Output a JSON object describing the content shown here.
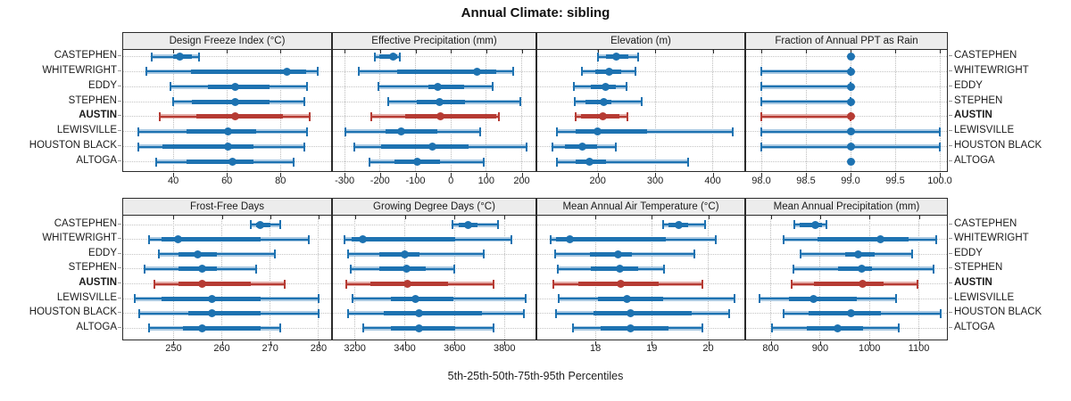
{
  "title": "Annual Climate: sibling",
  "footer": "5th-25th-50th-75th-95th Percentiles",
  "locations": [
    "CASTEPHEN",
    "WHITEWRIGHT",
    "EDDY",
    "STEPHEN",
    "AUSTIN",
    "LEWISVILLE",
    "HOUSTON BLACK",
    "ALTOGA"
  ],
  "highlight": "AUSTIN",
  "colors": {
    "blue": "#1d72b1",
    "blue_light": "#aac9e2",
    "red": "#b63b33",
    "red_light": "#e3aca7",
    "strip_bg": "#ececec",
    "border": "#2b2b2b",
    "grid": "#c0c0c0"
  },
  "chart_data": [
    {
      "type": "dotplot-percentiles",
      "grid": 0,
      "title": "Design Freeze Index (°C)",
      "xlim": [
        21.3,
        98.9
      ],
      "ticks": [
        40,
        60,
        80
      ],
      "tick_labels": [
        "40",
        "60",
        "80"
      ],
      "series": [
        {
          "name": "CASTEPHEN",
          "percentiles": [
            32,
            40,
            42.5,
            47,
            49.5
          ]
        },
        {
          "name": "WHITEWRIGHT",
          "percentiles": [
            30,
            46.5,
            82.5,
            89.5,
            94
          ]
        },
        {
          "name": "EDDY",
          "percentiles": [
            39,
            53,
            63,
            76,
            90
          ]
        },
        {
          "name": "STEPHEN",
          "percentiles": [
            40,
            47,
            63,
            76,
            89
          ]
        },
        {
          "name": "AUSTIN",
          "percentiles": [
            35,
            48.5,
            63,
            81,
            91
          ]
        },
        {
          "name": "LEWISVILLE",
          "percentiles": [
            27,
            45,
            60.5,
            71,
            90
          ]
        },
        {
          "name": "HOUSTON BLACK",
          "percentiles": [
            27,
            36,
            60.5,
            70,
            89
          ]
        },
        {
          "name": "ALTOGA",
          "percentiles": [
            33.5,
            45,
            62,
            70,
            85
          ]
        }
      ]
    },
    {
      "type": "dotplot-percentiles",
      "grid": 0,
      "title": "Effective Precipitation (mm)",
      "xlim": [
        -333,
        239
      ],
      "ticks": [
        -300,
        -200,
        -100,
        0,
        100,
        200
      ],
      "tick_labels": [
        "-300",
        "-200",
        "-100",
        "0",
        "100",
        "200"
      ],
      "series": [
        {
          "name": "CASTEPHEN",
          "percentiles": [
            -215,
            -203,
            -163,
            -151,
            -145
          ]
        },
        {
          "name": "WHITEWRIGHT",
          "percentiles": [
            -259,
            -151,
            74,
            128,
            176
          ]
        },
        {
          "name": "EDDY",
          "percentiles": [
            -205,
            -63,
            -36,
            37,
            118
          ]
        },
        {
          "name": "STEPHEN",
          "percentiles": [
            -176,
            -96,
            -32,
            41,
            195
          ]
        },
        {
          "name": "AUSTIN",
          "percentiles": [
            -226,
            -130,
            -30,
            128,
            135
          ]
        },
        {
          "name": "LEWISVILLE",
          "percentiles": [
            -298,
            -184,
            -141,
            -38,
            82
          ]
        },
        {
          "name": "HOUSTON BLACK",
          "percentiles": [
            -273,
            -196,
            -51,
            49,
            214
          ]
        },
        {
          "name": "ALTOGA",
          "percentiles": [
            -230,
            -159,
            -96,
            -30,
            93
          ]
        }
      ]
    },
    {
      "type": "dotplot-percentiles",
      "grid": 0,
      "title": "Elevation (m)",
      "xlim": [
        95,
        455
      ],
      "ticks": [
        200,
        300,
        400
      ],
      "tick_labels": [
        "200",
        "300",
        "400"
      ],
      "series": [
        {
          "name": "CASTEPHEN",
          "percentiles": [
            200,
            215,
            233,
            253,
            271
          ]
        },
        {
          "name": "WHITEWRIGHT",
          "percentiles": [
            172,
            196,
            220,
            241,
            265
          ]
        },
        {
          "name": "EDDY",
          "percentiles": [
            158,
            188,
            213,
            231,
            250
          ]
        },
        {
          "name": "STEPHEN",
          "percentiles": [
            160,
            179,
            210,
            224,
            276
          ]
        },
        {
          "name": "AUSTIN",
          "percentiles": [
            162,
            171,
            209,
            238,
            252
          ]
        },
        {
          "name": "LEWISVILLE",
          "percentiles": [
            129,
            162,
            200,
            286,
            435
          ]
        },
        {
          "name": "HOUSTON BLACK",
          "percentiles": [
            121,
            143,
            173,
            199,
            232
          ]
        },
        {
          "name": "ALTOGA",
          "percentiles": [
            129,
            162,
            185,
            214,
            357
          ]
        }
      ]
    },
    {
      "type": "dotplot-percentiles",
      "grid": 0,
      "title": "Fraction of Annual PPT as Rain",
      "xlim": [
        97.83,
        100.08
      ],
      "ticks": [
        98.0,
        98.5,
        99.0,
        99.5,
        100.0
      ],
      "tick_labels": [
        "98.0",
        "98.5",
        "99.0",
        "99.5",
        "100.0"
      ],
      "series": [
        {
          "name": "CASTEPHEN",
          "percentiles": [
            99,
            99,
            99,
            99,
            99
          ]
        },
        {
          "name": "WHITEWRIGHT",
          "percentiles": [
            98,
            99,
            99,
            99,
            99
          ]
        },
        {
          "name": "EDDY",
          "percentiles": [
            98,
            99,
            99,
            99,
            99
          ]
        },
        {
          "name": "STEPHEN",
          "percentiles": [
            98,
            99,
            99,
            99,
            99
          ]
        },
        {
          "name": "AUSTIN",
          "percentiles": [
            98,
            99,
            99,
            99,
            99
          ]
        },
        {
          "name": "LEWISVILLE",
          "percentiles": [
            98,
            99,
            99,
            99,
            100
          ]
        },
        {
          "name": "HOUSTON BLACK",
          "percentiles": [
            98,
            99,
            99,
            99,
            100
          ]
        },
        {
          "name": "ALTOGA",
          "percentiles": [
            99,
            99,
            99,
            99,
            99
          ]
        }
      ]
    },
    {
      "type": "dotplot-percentiles",
      "grid": 1,
      "title": "Frost-Free Days",
      "xlim": [
        239.6,
        282.6
      ],
      "ticks": [
        250,
        260,
        270,
        280
      ],
      "tick_labels": [
        "250",
        "260",
        "270",
        "280"
      ],
      "series": [
        {
          "name": "CASTEPHEN",
          "percentiles": [
            266,
            267,
            268,
            270,
            272
          ]
        },
        {
          "name": "WHITEWRIGHT",
          "percentiles": [
            245,
            247.5,
            251,
            268,
            278
          ]
        },
        {
          "name": "EDDY",
          "percentiles": [
            247,
            251,
            255,
            259,
            271
          ]
        },
        {
          "name": "STEPHEN",
          "percentiles": [
            244,
            251,
            256,
            259,
            267
          ]
        },
        {
          "name": "AUSTIN",
          "percentiles": [
            246,
            251,
            256,
            266,
            273
          ]
        },
        {
          "name": "LEWISVILLE",
          "percentiles": [
            242,
            247.5,
            258,
            268,
            280
          ]
        },
        {
          "name": "HOUSTON BLACK",
          "percentiles": [
            243,
            253,
            258,
            268,
            280
          ]
        },
        {
          "name": "ALTOGA",
          "percentiles": [
            245,
            252,
            256,
            268,
            272
          ]
        }
      ]
    },
    {
      "type": "dotplot-percentiles",
      "grid": 1,
      "title": "Growing Degree Days (°C)",
      "xlim": [
        3112,
        3924
      ],
      "ticks": [
        3200,
        3400,
        3600,
        3800
      ],
      "tick_labels": [
        "3200",
        "3400",
        "3600",
        "3800"
      ],
      "series": [
        {
          "name": "CASTEPHEN",
          "percentiles": [
            3590,
            3615,
            3655,
            3690,
            3775
          ]
        },
        {
          "name": "WHITEWRIGHT",
          "percentiles": [
            3160,
            3186,
            3230,
            3602,
            3829
          ]
        },
        {
          "name": "EDDY",
          "percentiles": [
            3171,
            3299,
            3400,
            3460,
            3715
          ]
        },
        {
          "name": "STEPHEN",
          "percentiles": [
            3183,
            3299,
            3406,
            3483,
            3600
          ]
        },
        {
          "name": "AUSTIN",
          "percentiles": [
            3164,
            3263,
            3410,
            3573,
            3754
          ]
        },
        {
          "name": "LEWISVILLE",
          "percentiles": [
            3192,
            3346,
            3444,
            3596,
            3886
          ]
        },
        {
          "name": "HOUSTON BLACK",
          "percentiles": [
            3171,
            3317,
            3457,
            3710,
            3879
          ]
        },
        {
          "name": "ALTOGA",
          "percentiles": [
            3233,
            3346,
            3456,
            3602,
            3757
          ]
        }
      ]
    },
    {
      "type": "dotplot-percentiles",
      "grid": 1,
      "title": "Mean Annual Air Temperature (°C)",
      "xlim": [
        16.97,
        20.64
      ],
      "ticks": [
        18,
        19,
        20
      ],
      "tick_labels": [
        "18",
        "19",
        "20"
      ],
      "series": [
        {
          "name": "CASTEPHEN",
          "percentiles": [
            19.2,
            19.3,
            19.48,
            19.65,
            19.95
          ]
        },
        {
          "name": "WHITEWRIGHT",
          "percentiles": [
            17.2,
            17.3,
            17.55,
            19.25,
            20.13
          ]
        },
        {
          "name": "EDDY",
          "percentiles": [
            17.28,
            17.9,
            18.4,
            18.65,
            19.75
          ]
        },
        {
          "name": "STEPHEN",
          "percentiles": [
            17.34,
            17.92,
            18.43,
            18.76,
            19.22
          ]
        },
        {
          "name": "AUSTIN",
          "percentiles": [
            17.25,
            17.7,
            18.45,
            19.13,
            19.9
          ]
        },
        {
          "name": "LEWISVILLE",
          "percentiles": [
            17.35,
            18.05,
            18.56,
            19.2,
            20.46
          ]
        },
        {
          "name": "HOUSTON BLACK",
          "percentiles": [
            17.3,
            17.97,
            18.62,
            19.7,
            20.37
          ]
        },
        {
          "name": "ALTOGA",
          "percentiles": [
            17.6,
            18.1,
            18.62,
            19.29,
            19.9
          ]
        }
      ]
    },
    {
      "type": "dotplot-percentiles",
      "grid": 1,
      "title": "Mean Annual Precipitation (mm)",
      "xlim": [
        750,
        1157
      ],
      "ticks": [
        800,
        900,
        1000,
        1100
      ],
      "tick_labels": [
        "800",
        "900",
        "1000",
        "1100"
      ],
      "series": [
        {
          "name": "CASTEPHEN",
          "percentiles": [
            847,
            858,
            890,
            903,
            912
          ]
        },
        {
          "name": "WHITEWRIGHT",
          "percentiles": [
            826,
            894,
            1022,
            1080,
            1135
          ]
        },
        {
          "name": "EDDY",
          "percentiles": [
            861,
            951,
            977,
            1011,
            1087
          ]
        },
        {
          "name": "STEPHEN",
          "percentiles": [
            846,
            936,
            985,
            1005,
            1129
          ]
        },
        {
          "name": "AUSTIN",
          "percentiles": [
            842,
            888,
            986,
            1029,
            1098
          ]
        },
        {
          "name": "LEWISVILLE",
          "percentiles": [
            777,
            837,
            887,
            975,
            1053
          ]
        },
        {
          "name": "HOUSTON BLACK",
          "percentiles": [
            825,
            876,
            963,
            1023,
            1145
          ]
        },
        {
          "name": "ALTOGA",
          "percentiles": [
            803,
            873,
            936,
            987,
            1060
          ]
        }
      ]
    }
  ]
}
